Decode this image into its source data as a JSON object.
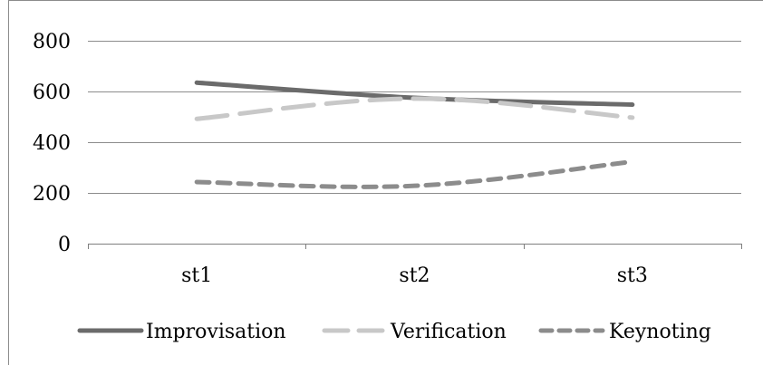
{
  "chart_data": {
    "type": "line",
    "title": "",
    "xlabel": "",
    "ylabel": "",
    "categories": [
      "st1",
      "st2",
      "st3"
    ],
    "ylim": [
      0,
      800
    ],
    "yticks": [
      0,
      200,
      400,
      600,
      800
    ],
    "grid": true,
    "legend_position": "bottom",
    "series": [
      {
        "name": "Improvisation",
        "values": [
          635,
          575,
          548
        ],
        "color": "#6b6b6b",
        "dash": "solid"
      },
      {
        "name": "Verification",
        "values": [
          492,
          572,
          497
        ],
        "color": "#c8c8c8",
        "dash": "long-dash"
      },
      {
        "name": "Keynoting",
        "values": [
          243,
          228,
          323
        ],
        "color": "#8c8c8c",
        "dash": "short-dash"
      }
    ]
  }
}
